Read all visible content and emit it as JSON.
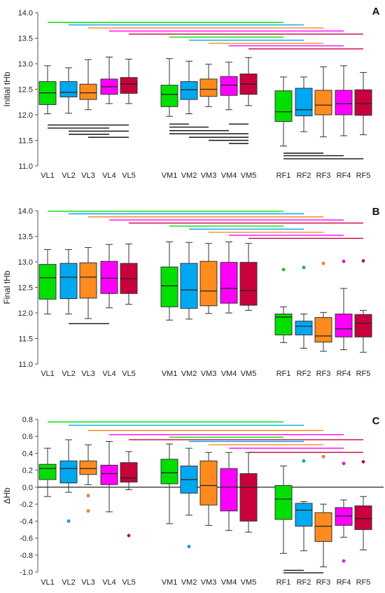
{
  "colors": [
    "#00e000",
    "#00a8f0",
    "#ff8a1e",
    "#ff00ff",
    "#c8003c"
  ],
  "chart_data": [
    {
      "type": "box",
      "panel_label": "A",
      "ylabel": "Initial tHb",
      "ylim": [
        11.0,
        14.0
      ],
      "yticks": [
        "11.0",
        "11.5",
        "12.0",
        "12.5",
        "13.0",
        "13.5",
        "14.0"
      ],
      "categories": [
        "VL1",
        "VL2",
        "VL3",
        "VL4",
        "VL5",
        "VM1",
        "VM2",
        "VM3",
        "VM4",
        "VM5",
        "RF1",
        "RF2",
        "RF3",
        "RF4",
        "RF5"
      ],
      "boxes": [
        {
          "min": 12.02,
          "q1": 12.2,
          "median": 12.43,
          "q3": 12.65,
          "max": 12.96,
          "outliers": []
        },
        {
          "min": 12.03,
          "q1": 12.35,
          "median": 12.44,
          "q3": 12.65,
          "max": 12.92,
          "outliers": []
        },
        {
          "min": 12.1,
          "q1": 12.3,
          "median": 12.43,
          "q3": 12.6,
          "max": 13.08,
          "outliers": []
        },
        {
          "min": 12.22,
          "q1": 12.4,
          "median": 12.55,
          "q3": 12.7,
          "max": 13.13,
          "outliers": []
        },
        {
          "min": 12.22,
          "q1": 12.42,
          "median": 12.6,
          "q3": 12.73,
          "max": 13.09,
          "outliers": []
        },
        {
          "min": 11.97,
          "q1": 12.16,
          "median": 12.4,
          "q3": 12.58,
          "max": 13.1,
          "outliers": []
        },
        {
          "min": 12.02,
          "q1": 12.3,
          "median": 12.49,
          "q3": 12.65,
          "max": 13.05,
          "outliers": []
        },
        {
          "min": 12.16,
          "q1": 12.36,
          "median": 12.5,
          "q3": 12.7,
          "max": 12.99,
          "outliers": []
        },
        {
          "min": 12.1,
          "q1": 12.38,
          "median": 12.58,
          "q3": 12.75,
          "max": 13.03,
          "outliers": []
        },
        {
          "min": 12.18,
          "q1": 12.4,
          "median": 12.6,
          "q3": 12.8,
          "max": 13.12,
          "outliers": []
        },
        {
          "min": 11.39,
          "q1": 11.87,
          "median": 12.06,
          "q3": 12.47,
          "max": 12.74,
          "outliers": []
        },
        {
          "min": 11.67,
          "q1": 11.98,
          "median": 12.1,
          "q3": 12.52,
          "max": 12.74,
          "outliers": []
        },
        {
          "min": 11.57,
          "q1": 12.0,
          "median": 12.19,
          "q3": 12.48,
          "max": 12.94,
          "outliers": []
        },
        {
          "min": 11.59,
          "q1": 12.0,
          "median": 12.22,
          "q3": 12.48,
          "max": 12.96,
          "outliers": []
        },
        {
          "min": 11.61,
          "q1": 11.99,
          "median": 12.22,
          "q3": 12.49,
          "max": 12.83,
          "outliers": []
        }
      ],
      "sig_lines": [
        {
          "from": 0,
          "to": 10,
          "y": 13.81,
          "color": 0
        },
        {
          "from": 1,
          "to": 11,
          "y": 13.76,
          "color": 1
        },
        {
          "from": 2,
          "to": 12,
          "y": 13.7,
          "color": 2
        },
        {
          "from": 3,
          "to": 13,
          "y": 13.64,
          "color": 3
        },
        {
          "from": 4,
          "to": 14,
          "y": 13.58,
          "color": 4
        },
        {
          "from": 5,
          "to": 10,
          "y": 13.52,
          "color": 0
        },
        {
          "from": 6,
          "to": 11,
          "y": 13.46,
          "color": 1
        },
        {
          "from": 7,
          "to": 12,
          "y": 13.4,
          "color": 2
        },
        {
          "from": 8,
          "to": 13,
          "y": 13.35,
          "color": 3
        },
        {
          "from": 9,
          "to": 14,
          "y": 13.29,
          "color": 4
        },
        {
          "from": 0,
          "to": 4,
          "y": 11.8,
          "color": "black"
        },
        {
          "from": 0,
          "to": 3,
          "y": 11.74,
          "color": "black"
        },
        {
          "from": 1,
          "to": 4,
          "y": 11.68,
          "color": "black"
        },
        {
          "from": 1,
          "to": 3,
          "y": 11.62,
          "color": "black"
        },
        {
          "from": 2,
          "to": 4,
          "y": 11.56,
          "color": "black"
        },
        {
          "from": 5,
          "to": 6,
          "y": 11.82,
          "color": "black"
        },
        {
          "from": 5,
          "to": 7,
          "y": 11.76,
          "color": "black"
        },
        {
          "from": 5,
          "to": 8,
          "y": 11.69,
          "color": "black"
        },
        {
          "from": 5,
          "to": 9,
          "y": 11.63,
          "color": "black"
        },
        {
          "from": 6,
          "to": 9,
          "y": 11.56,
          "color": "black"
        },
        {
          "from": 7,
          "to": 9,
          "y": 11.5,
          "color": "black"
        },
        {
          "from": 8,
          "to": 9,
          "y": 11.44,
          "color": "black"
        },
        {
          "from": 8,
          "to": 9,
          "y": 11.82,
          "color": "black"
        },
        {
          "from": 10,
          "to": 12,
          "y": 11.25,
          "color": "black"
        },
        {
          "from": 10,
          "to": 13,
          "y": 11.2,
          "color": "black"
        },
        {
          "from": 10,
          "to": 14,
          "y": 11.14,
          "color": "black"
        }
      ]
    },
    {
      "type": "box",
      "panel_label": "B",
      "ylabel": "Final tHb",
      "ylim": [
        11.0,
        14.0
      ],
      "yticks": [
        "11.0",
        "11.5",
        "12.0",
        "12.5",
        "13.0",
        "13.5",
        "14.0"
      ],
      "categories": [
        "VL1",
        "VL2",
        "VL3",
        "VL4",
        "VL5",
        "VM1",
        "VM2",
        "VM3",
        "VM4",
        "VM5",
        "RF1",
        "RF2",
        "RF3",
        "RF4",
        "RF5"
      ],
      "boxes": [
        {
          "min": 11.98,
          "q1": 12.27,
          "median": 12.69,
          "q3": 12.95,
          "max": 13.24,
          "outliers": []
        },
        {
          "min": 11.98,
          "q1": 12.28,
          "median": 12.7,
          "q3": 12.97,
          "max": 13.24,
          "outliers": []
        },
        {
          "min": 11.89,
          "q1": 12.29,
          "median": 12.7,
          "q3": 12.98,
          "max": 13.28,
          "outliers": []
        },
        {
          "min": 12.1,
          "q1": 12.38,
          "median": 12.68,
          "q3": 13.01,
          "max": 13.34,
          "outliers": []
        },
        {
          "min": 12.17,
          "q1": 12.38,
          "median": 12.67,
          "q3": 12.97,
          "max": 13.35,
          "outliers": []
        },
        {
          "min": 11.86,
          "q1": 12.12,
          "median": 12.53,
          "q3": 12.9,
          "max": 13.39,
          "outliers": []
        },
        {
          "min": 11.88,
          "q1": 12.09,
          "median": 12.45,
          "q3": 12.97,
          "max": 13.38,
          "outliers": []
        },
        {
          "min": 11.99,
          "q1": 12.14,
          "median": 12.43,
          "q3": 13.01,
          "max": 13.36,
          "outliers": []
        },
        {
          "min": 12.0,
          "q1": 12.19,
          "median": 12.48,
          "q3": 12.99,
          "max": 13.39,
          "outliers": []
        },
        {
          "min": 12.05,
          "q1": 12.15,
          "median": 12.44,
          "q3": 12.99,
          "max": 13.36,
          "outliers": []
        },
        {
          "min": 11.42,
          "q1": 11.57,
          "median": 11.92,
          "q3": 11.98,
          "max": 12.12,
          "outliers": [
            12.85
          ]
        },
        {
          "min": 11.31,
          "q1": 11.57,
          "median": 11.74,
          "q3": 11.84,
          "max": 11.98,
          "outliers": [
            12.89
          ]
        },
        {
          "min": 11.25,
          "q1": 11.43,
          "median": 11.55,
          "q3": 11.91,
          "max": 12.01,
          "outliers": [
            12.97
          ]
        },
        {
          "min": 11.28,
          "q1": 11.53,
          "median": 11.69,
          "q3": 11.98,
          "max": 12.48,
          "outliers": [
            13.01
          ]
        },
        {
          "min": 11.23,
          "q1": 11.53,
          "median": 11.8,
          "q3": 11.97,
          "max": 12.05,
          "outliers": [
            13.02
          ]
        }
      ],
      "sig_lines": [
        {
          "from": 0,
          "to": 10,
          "y": 13.99,
          "color": 0
        },
        {
          "from": 1,
          "to": 11,
          "y": 13.94,
          "color": 1
        },
        {
          "from": 2,
          "to": 12,
          "y": 13.88,
          "color": 2
        },
        {
          "from": 3,
          "to": 13,
          "y": 13.82,
          "color": 3
        },
        {
          "from": 4,
          "to": 14,
          "y": 13.76,
          "color": 4
        },
        {
          "from": 5,
          "to": 10,
          "y": 13.7,
          "color": 0
        },
        {
          "from": 6,
          "to": 11,
          "y": 13.64,
          "color": 1
        },
        {
          "from": 7,
          "to": 12,
          "y": 13.58,
          "color": 2
        },
        {
          "from": 8,
          "to": 13,
          "y": 13.52,
          "color": 3
        },
        {
          "from": 9,
          "to": 14,
          "y": 13.46,
          "color": 4
        },
        {
          "from": 1,
          "to": 3,
          "y": 11.79,
          "color": "black"
        }
      ]
    },
    {
      "type": "box",
      "panel_label": "C",
      "ylabel": "ΔHb",
      "ylim": [
        -1.0,
        0.8
      ],
      "yticks": [
        "-1.0",
        "-0.8",
        "-0.6",
        "-0.4",
        "-0.2",
        "0.0",
        "0.2",
        "0.4",
        "0.6",
        "0.8"
      ],
      "zero_line": true,
      "categories": [
        "VL1",
        "VL2",
        "VL3",
        "VL4",
        "VL5",
        "VM1",
        "VM2",
        "VM3",
        "VM4",
        "VM5",
        "RF1",
        "RF2",
        "RF3",
        "RF4",
        "RF5"
      ],
      "boxes": [
        {
          "min": -0.11,
          "q1": 0.09,
          "median": 0.22,
          "q3": 0.27,
          "max": 0.46,
          "outliers": []
        },
        {
          "min": -0.06,
          "q1": 0.05,
          "median": 0.22,
          "q3": 0.31,
          "max": 0.56,
          "outliers": [
            -0.4
          ]
        },
        {
          "min": 0.03,
          "q1": 0.15,
          "median": 0.22,
          "q3": 0.31,
          "max": 0.5,
          "outliers": [
            -0.1,
            -0.28
          ]
        },
        {
          "min": -0.29,
          "q1": 0.03,
          "median": 0.16,
          "q3": 0.26,
          "max": 0.54,
          "outliers": []
        },
        {
          "min": -0.03,
          "q1": 0.06,
          "median": 0.11,
          "q3": 0.29,
          "max": 0.42,
          "outliers": [
            -0.57
          ]
        },
        {
          "min": -0.43,
          "q1": 0.04,
          "median": 0.17,
          "q3": 0.33,
          "max": 0.51,
          "outliers": []
        },
        {
          "min": -0.33,
          "q1": -0.07,
          "median": 0.09,
          "q3": 0.25,
          "max": 0.46,
          "outliers": [
            -0.7
          ]
        },
        {
          "min": -0.45,
          "q1": -0.21,
          "median": 0.02,
          "q3": 0.31,
          "max": 0.41,
          "outliers": []
        },
        {
          "min": -0.51,
          "q1": -0.28,
          "median": 0.0,
          "q3": 0.22,
          "max": 0.41,
          "outliers": []
        },
        {
          "min": -0.53,
          "q1": -0.4,
          "median": 0.0,
          "q3": 0.16,
          "max": 0.41,
          "outliers": []
        },
        {
          "min": -0.78,
          "q1": -0.38,
          "median": -0.14,
          "q3": 0.02,
          "max": 0.25,
          "outliers": []
        },
        {
          "min": -0.75,
          "q1": -0.46,
          "median": -0.27,
          "q3": -0.19,
          "max": -0.17,
          "outliers": [
            0.31
          ]
        },
        {
          "min": -0.94,
          "q1": -0.64,
          "median": -0.46,
          "q3": -0.3,
          "max": -0.2,
          "outliers": [
            0.36
          ]
        },
        {
          "min": -0.59,
          "q1": -0.45,
          "median": -0.34,
          "q3": -0.24,
          "max": -0.15,
          "outliers": [
            0.28,
            -0.87
          ]
        },
        {
          "min": -0.74,
          "q1": -0.5,
          "median": -0.37,
          "q3": -0.22,
          "max": -0.11,
          "outliers": [
            0.3
          ]
        }
      ],
      "sig_lines": [
        {
          "from": 0,
          "to": 10,
          "y": 0.77,
          "color": 0
        },
        {
          "from": 1,
          "to": 11,
          "y": 0.73,
          "color": 1
        },
        {
          "from": 2,
          "to": 12,
          "y": 0.67,
          "color": 2
        },
        {
          "from": 3,
          "to": 13,
          "y": 0.62,
          "color": 3
        },
        {
          "from": 4,
          "to": 14,
          "y": 0.56,
          "color": 4
        },
        {
          "from": 5,
          "to": 10,
          "y": 0.59,
          "color": 0
        },
        {
          "from": 6,
          "to": 11,
          "y": 0.54,
          "color": 1
        },
        {
          "from": 7,
          "to": 12,
          "y": 0.5,
          "color": 2
        },
        {
          "from": 8,
          "to": 13,
          "y": 0.46,
          "color": 3
        },
        {
          "from": 9,
          "to": 14,
          "y": 0.41,
          "color": 4
        },
        {
          "from": 10,
          "to": 11,
          "y": -0.98,
          "color": "black"
        },
        {
          "from": 10,
          "to": 12,
          "y": -1.01,
          "color": "black"
        }
      ]
    }
  ]
}
